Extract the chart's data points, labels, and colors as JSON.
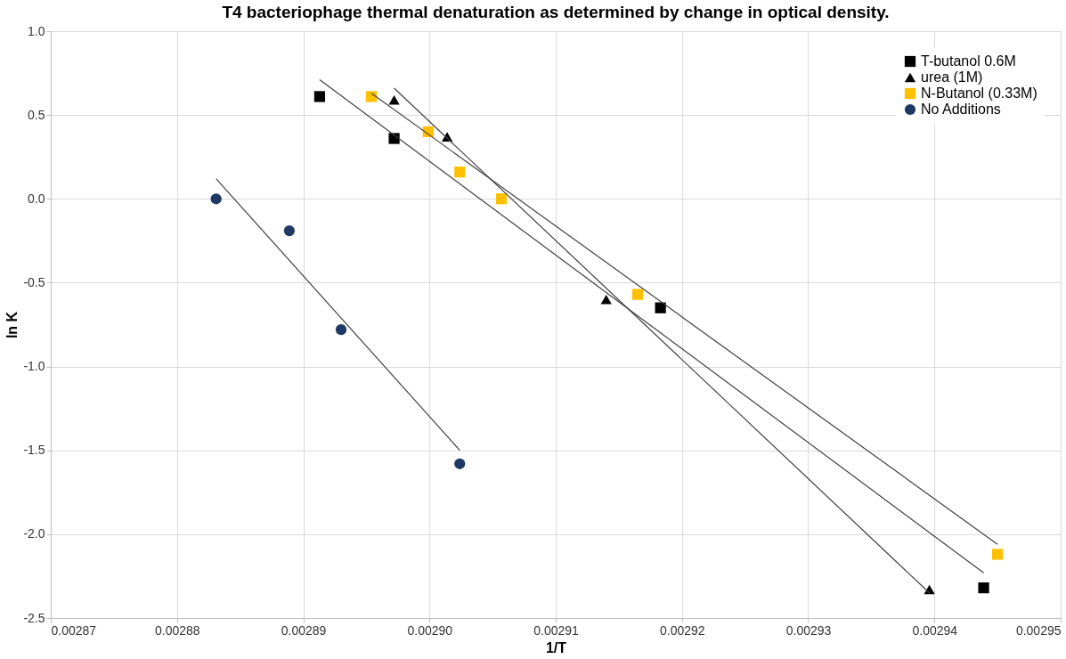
{
  "chart_data": {
    "type": "scatter",
    "title": "T4 bacteriophage thermal denaturation as determined by change in optical  density.",
    "xlabel": "1/T",
    "ylabel": "ln K",
    "xlim": [
      0.00287,
      0.00295
    ],
    "ylim": [
      -2.5,
      1.0
    ],
    "xticks": [
      {
        "value": 0.00287,
        "label": "0.00287"
      },
      {
        "value": 0.00288,
        "label": "0.00288"
      },
      {
        "value": 0.00289,
        "label": "0.00289"
      },
      {
        "value": 0.0029,
        "label": "0.00290"
      },
      {
        "value": 0.00291,
        "label": "0.00291"
      },
      {
        "value": 0.00292,
        "label": "0.00292"
      },
      {
        "value": 0.00293,
        "label": "0.00293"
      },
      {
        "value": 0.00294,
        "label": "0.00294"
      },
      {
        "value": 0.00295,
        "label": "0.00295"
      }
    ],
    "yticks": [
      {
        "value": -2.5,
        "label": "-2.5"
      },
      {
        "value": -2.0,
        "label": "-2.0"
      },
      {
        "value": -1.5,
        "label": "-1.5"
      },
      {
        "value": -1.0,
        "label": "-1.0"
      },
      {
        "value": -0.5,
        "label": "-0.5"
      },
      {
        "value": 0,
        "label": "0.0"
      },
      {
        "value": 0.5,
        "label": "0.5"
      },
      {
        "value": 1.0,
        "label": "1.0"
      }
    ],
    "grid": true,
    "legend": "top right",
    "series": [
      {
        "name": "T-butanol 0.6M",
        "marker": "square",
        "color": "#000000",
        "x": [
          0.0028913,
          0.0028972,
          0.0029183,
          0.0029439
        ],
        "values": [
          0.61,
          0.36,
          -0.65,
          -2.32
        ]
      },
      {
        "name": "urea (1M)",
        "marker": "triangle",
        "color": "#000000",
        "x": [
          0.0028972,
          0.0029014,
          0.002914,
          0.0029396
        ],
        "values": [
          0.59,
          0.37,
          -0.6,
          -2.33
        ]
      },
      {
        "name": "N-Butanol (0.33M)",
        "marker": "square",
        "color": "#ffc000",
        "x": [
          0.0028954,
          0.0028999,
          0.0029024,
          0.0029057,
          0.0029165,
          0.002945
        ],
        "values": [
          0.61,
          0.4,
          0.16,
          0.0,
          -0.57,
          -2.12
        ]
      },
      {
        "name": "No Additions",
        "marker": "circle",
        "color": "#1f3864",
        "x": [
          0.0028831,
          0.0028889,
          0.002893,
          0.0029024
        ],
        "values": [
          0.0,
          -0.19,
          -0.78,
          -1.58
        ]
      },
      {
        "type": "line",
        "color": "#404040",
        "x": [
          0.0028913,
          0.0029439
        ],
        "values": [
          0.71,
          -2.23
        ]
      },
      {
        "type": "line",
        "color": "#404040",
        "x": [
          0.0028972,
          0.0029396
        ],
        "values": [
          0.66,
          -2.35
        ]
      },
      {
        "type": "line",
        "color": "#404040",
        "x": [
          0.0028954,
          0.002945
        ],
        "values": [
          0.63,
          -2.06
        ]
      },
      {
        "type": "line",
        "color": "#404040",
        "x": [
          0.0028831,
          0.0029024
        ],
        "values": [
          0.12,
          -1.5
        ]
      }
    ]
  }
}
